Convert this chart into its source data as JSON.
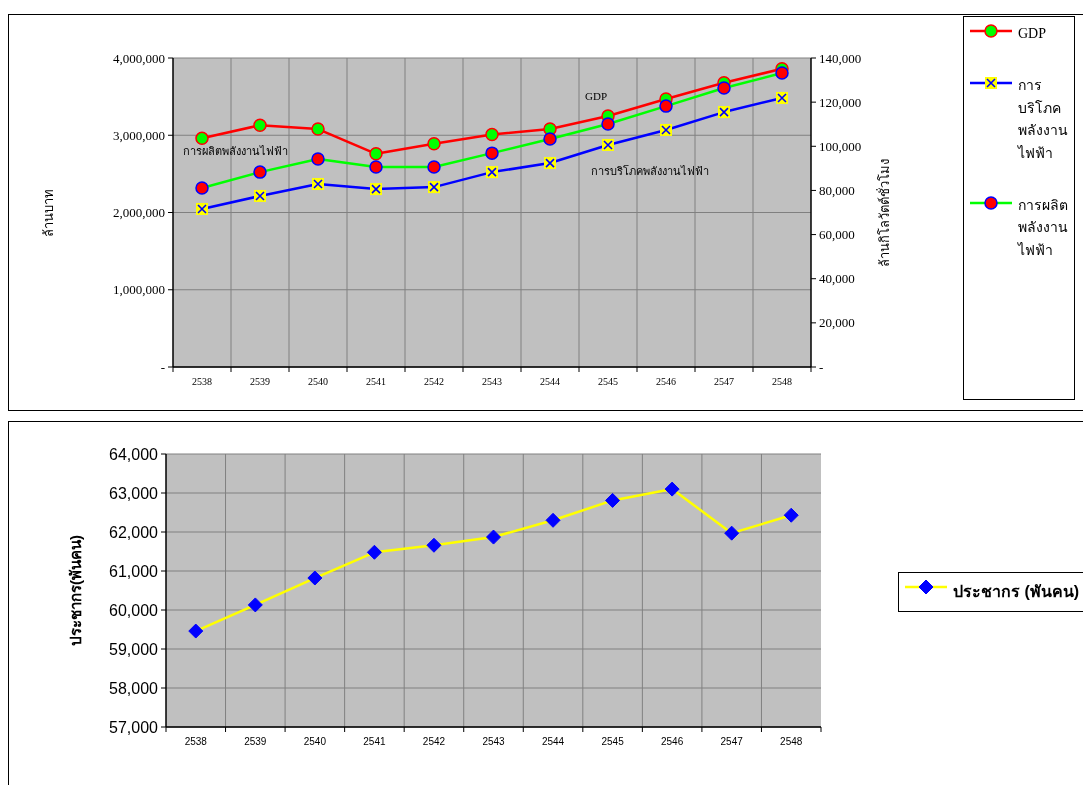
{
  "chart_data": [
    {
      "type": "line",
      "categories": [
        "2538",
        "2539",
        "2540",
        "2541",
        "2542",
        "2543",
        "2544",
        "2545",
        "2546",
        "2547",
        "2548"
      ],
      "ylabel": "ล้านบาท",
      "y2label": "ล้านกิโลวัตต์ชั่วโมง",
      "ylim": [
        0,
        4000000
      ],
      "yticks": [
        {
          "value": 0,
          "label": "-"
        },
        {
          "value": 1000000,
          "label": "1,000,000"
        },
        {
          "value": 2000000,
          "label": "2,000,000"
        },
        {
          "value": 3000000,
          "label": "3,000,000"
        },
        {
          "value": 4000000,
          "label": "4,000,000"
        }
      ],
      "y2lim": [
        0,
        140000
      ],
      "y2ticks": [
        {
          "value": 0,
          "label": "-"
        },
        {
          "value": 20000,
          "label": "20,000"
        },
        {
          "value": 40000,
          "label": "40,000"
        },
        {
          "value": 60000,
          "label": "60,000"
        },
        {
          "value": 80000,
          "label": "80,000"
        },
        {
          "value": 100000,
          "label": "100,000"
        },
        {
          "value": 120000,
          "label": "120,000"
        },
        {
          "value": 140000,
          "label": "140,000"
        }
      ],
      "series": [
        {
          "name": "GDP",
          "color": "#ff0000",
          "marker": "circle",
          "values": [
            2960000,
            3130000,
            3080000,
            2760000,
            2890000,
            3010000,
            3080000,
            3250000,
            3470000,
            3680000,
            3860000
          ]
        },
        {
          "name": "การบริโภคพลังงานไฟฟ้า",
          "color": "#0000ff",
          "marker": "cross",
          "axis": "y2",
          "values": [
            71600,
            77500,
            82900,
            80600,
            81500,
            88300,
            92400,
            100600,
            107400,
            115500,
            121900
          ]
        },
        {
          "name": "การผลิตพลังงานไฟฟ้า",
          "color": "#00ff00",
          "marker": "circle",
          "axis": "y2",
          "values": [
            81100,
            88300,
            94200,
            90600,
            90600,
            96900,
            103300,
            110100,
            118200,
            126400,
            133200
          ]
        }
      ],
      "annotations": [
        "การผลิตพลังงานไฟฟ้า",
        "GDP",
        "การบริโภคพลังงานไฟฟ้า"
      ],
      "grid": true,
      "legend": "right"
    },
    {
      "type": "line",
      "categories": [
        "2538",
        "2539",
        "2540",
        "2541",
        "2542",
        "2543",
        "2544",
        "2545",
        "2546",
        "2547",
        "2548"
      ],
      "ylabel": "ประชากร(พันคน)",
      "ylim": [
        57000,
        64000
      ],
      "yticks": [
        {
          "value": 57000,
          "label": "57,000"
        },
        {
          "value": 58000,
          "label": "58,000"
        },
        {
          "value": 59000,
          "label": "59,000"
        },
        {
          "value": 60000,
          "label": "60,000"
        },
        {
          "value": 61000,
          "label": "61,000"
        },
        {
          "value": 62000,
          "label": "62,000"
        },
        {
          "value": 63000,
          "label": "63,000"
        },
        {
          "value": 64000,
          "label": "64,000"
        }
      ],
      "series": [
        {
          "name": "ประชากร (พันคน)",
          "color": "#ffff00",
          "marker": "diamond",
          "values": [
            59460,
            60130,
            60820,
            61480,
            61660,
            61870,
            62300,
            62810,
            63100,
            61970,
            62430
          ]
        }
      ],
      "grid": true,
      "legend": "right"
    }
  ]
}
